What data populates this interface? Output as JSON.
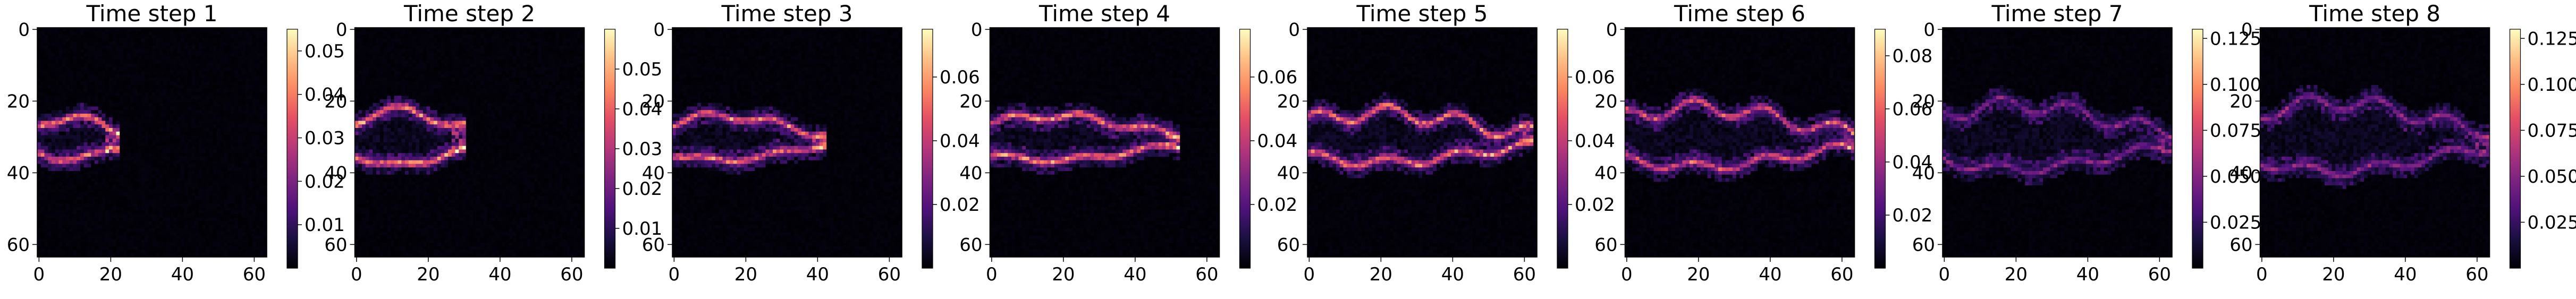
{
  "chart_data": [
    {
      "type": "heatmap",
      "title": "Time step 1",
      "xlabel": "",
      "ylabel": "",
      "xlim": [
        0,
        63
      ],
      "ylim": [
        63,
        0
      ],
      "xticks": [
        0,
        20,
        40,
        60
      ],
      "yticks": [
        0,
        20,
        40,
        60
      ],
      "colormap": "magma",
      "colorbar_range": [
        0.0,
        0.055
      ],
      "colorbar_ticks": [
        0.01,
        0.02,
        0.03,
        0.04,
        0.05
      ],
      "colorbar_tick_labels": [
        "0.01",
        "0.02",
        "0.03",
        "0.04",
        "0.05"
      ],
      "structure": "bright thin contour tracing a small plume, left side, rows ~22-38, cols 0-22"
    },
    {
      "type": "heatmap",
      "title": "Time step 2",
      "xlabel": "",
      "ylabel": "",
      "xlim": [
        0,
        63
      ],
      "ylim": [
        63,
        0
      ],
      "xticks": [
        0,
        20,
        40,
        60
      ],
      "yticks": [
        0,
        20,
        40,
        60
      ],
      "colormap": "magma",
      "colorbar_range": [
        0.0,
        0.06
      ],
      "colorbar_ticks": [
        0.01,
        0.02,
        0.03,
        0.04,
        0.05
      ],
      "colorbar_tick_labels": [
        "0.01",
        "0.02",
        "0.03",
        "0.04",
        "0.05"
      ],
      "structure": "bright contour around plume, rows ~20-40, cols 0-30"
    },
    {
      "type": "heatmap",
      "title": "Time step 3",
      "xlabel": "",
      "ylabel": "",
      "xlim": [
        0,
        63
      ],
      "ylim": [
        63,
        0
      ],
      "xticks": [
        0,
        20,
        40,
        60
      ],
      "yticks": [
        0,
        20,
        40,
        60
      ],
      "colormap": "magma",
      "colorbar_range": [
        0.0,
        0.075
      ],
      "colorbar_ticks": [
        0.02,
        0.04,
        0.06
      ],
      "colorbar_tick_labels": [
        "0.02",
        "0.04",
        "0.06"
      ],
      "structure": "elongated contour, rows ~22-40, cols 0-42"
    },
    {
      "type": "heatmap",
      "title": "Time step 4",
      "xlabel": "",
      "ylabel": "",
      "xlim": [
        0,
        63
      ],
      "ylim": [
        63,
        0
      ],
      "xticks": [
        0,
        20,
        40,
        60
      ],
      "yticks": [
        0,
        20,
        40,
        60
      ],
      "colormap": "magma",
      "colorbar_range": [
        0.0,
        0.075
      ],
      "colorbar_ticks": [
        0.02,
        0.04,
        0.06
      ],
      "colorbar_tick_labels": [
        "0.02",
        "0.04",
        "0.06"
      ],
      "structure": "arrow-shaped contour, rows ~22-40, cols 0-52"
    },
    {
      "type": "heatmap",
      "title": "Time step 5",
      "xlabel": "",
      "ylabel": "",
      "xlim": [
        0,
        63
      ],
      "ylim": [
        63,
        0
      ],
      "xticks": [
        0,
        20,
        40,
        60
      ],
      "yticks": [
        0,
        20,
        40,
        60
      ],
      "colormap": "magma",
      "colorbar_range": [
        0.0,
        0.075
      ],
      "colorbar_ticks": [
        0.02,
        0.04,
        0.06
      ],
      "colorbar_tick_labels": [
        "0.02",
        "0.04",
        "0.06"
      ],
      "structure": "wavy contour, rows ~20-40, cols 0-62"
    },
    {
      "type": "heatmap",
      "title": "Time step 6",
      "xlabel": "",
      "ylabel": "",
      "xlim": [
        0,
        63
      ],
      "ylim": [
        63,
        0
      ],
      "xticks": [
        0,
        20,
        40,
        60
      ],
      "yticks": [
        0,
        20,
        40,
        60
      ],
      "colormap": "magma",
      "colorbar_range": [
        0.0,
        0.09
      ],
      "colorbar_ticks": [
        0.02,
        0.04,
        0.06,
        0.08
      ],
      "colorbar_tick_labels": [
        "0.02",
        "0.04",
        "0.06",
        "0.08"
      ],
      "structure": "wavy contour spanning full width, rows ~18-44"
    },
    {
      "type": "heatmap",
      "title": "Time step 7",
      "xlabel": "",
      "ylabel": "",
      "xlim": [
        0,
        63
      ],
      "ylim": [
        63,
        0
      ],
      "xticks": [
        0,
        20,
        40,
        60
      ],
      "yticks": [
        0,
        20,
        40,
        60
      ],
      "colormap": "magma",
      "colorbar_range": [
        0.0,
        0.13
      ],
      "colorbar_ticks": [
        0.025,
        0.05,
        0.075,
        0.1,
        0.125
      ],
      "colorbar_tick_labels": [
        "0.025",
        "0.050",
        "0.075",
        "0.100",
        "0.125"
      ],
      "structure": "dim wavy contour, rows ~18-44, full width"
    },
    {
      "type": "heatmap",
      "title": "Time step 8",
      "xlabel": "",
      "ylabel": "",
      "xlim": [
        0,
        63
      ],
      "ylim": [
        63,
        0
      ],
      "xticks": [
        0,
        20,
        40,
        60
      ],
      "yticks": [
        0,
        20,
        40,
        60
      ],
      "colormap": "magma",
      "colorbar_range": [
        0.0,
        0.13
      ],
      "colorbar_ticks": [
        0.025,
        0.05,
        0.075,
        0.1,
        0.125
      ],
      "colorbar_tick_labels": [
        "0.025",
        "0.050",
        "0.075",
        "0.100",
        "0.125"
      ],
      "structure": "dim wavy contour, rows ~18-46, full width"
    }
  ]
}
